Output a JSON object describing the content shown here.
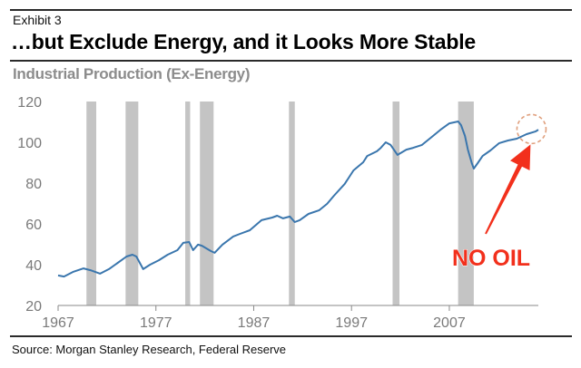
{
  "header": {
    "exhibit_label": "Exhibit 3",
    "title": "…but Exclude Energy, and it Looks More Stable",
    "chart_subtitle": "Industrial Production (Ex-Energy)"
  },
  "footer": {
    "source": "Source: Morgan Stanley Research, Federal Reserve"
  },
  "colors": {
    "line": "#3a76ad",
    "recession": "#c4c4c4",
    "annotation": "#f2301c",
    "circle": "#e0a07e",
    "axis": "#8a8a8a"
  },
  "chart_data": {
    "type": "line",
    "title": "Industrial Production (Ex-Energy)",
    "xlabel": "",
    "ylabel": "",
    "xlim": [
      1967,
      2016.1
    ],
    "ylim": [
      20,
      120
    ],
    "grid": false,
    "x_ticks": [
      1967,
      1977,
      1987,
      1997,
      2007
    ],
    "x_tick_labels": [
      "1967",
      "1977",
      "1987",
      "1997",
      "2007"
    ],
    "y_ticks": [
      20,
      40,
      60,
      80,
      100,
      120
    ],
    "y_tick_labels": [
      "20",
      "40",
      "60",
      "80",
      "100",
      "120"
    ],
    "recessions": [
      [
        1969.9,
        1970.9
      ],
      [
        1973.9,
        1975.2
      ],
      [
        1980.0,
        1980.5
      ],
      [
        1981.5,
        1982.9
      ],
      [
        1990.6,
        1991.2
      ],
      [
        2001.2,
        2001.9
      ],
      [
        2007.9,
        2009.5
      ]
    ],
    "series": [
      {
        "name": "Industrial Production (Ex-Energy)",
        "x": [
          1967.0,
          1967.6,
          1968.5,
          1969.6,
          1970.3,
          1971.3,
          1972.2,
          1973.1,
          1974.0,
          1974.6,
          1975.0,
          1975.7,
          1976.4,
          1977.3,
          1978.2,
          1979.2,
          1979.8,
          1980.4,
          1980.8,
          1981.3,
          1981.7,
          1982.6,
          1983.0,
          1983.8,
          1984.9,
          1985.6,
          1986.6,
          1987.8,
          1988.9,
          1989.4,
          1990.0,
          1990.7,
          1991.2,
          1991.7,
          1992.6,
          1993.7,
          1994.5,
          1995.2,
          1996.3,
          1997.2,
          1998.2,
          1998.6,
          1999.6,
          2000.0,
          2000.5,
          2001.0,
          2001.7,
          2002.6,
          2003.3,
          2004.2,
          2005.1,
          2006.1,
          2007.0,
          2007.9,
          2008.2,
          2008.6,
          2008.9,
          2009.3,
          2009.5,
          2009.9,
          2010.4,
          2011.2,
          2012.1,
          2013.0,
          2013.9,
          2014.9,
          2015.8,
          2016.1
        ],
        "values": [
          34.7,
          34.2,
          36.4,
          38.2,
          37.3,
          35.6,
          37.8,
          40.9,
          44.0,
          44.9,
          44.0,
          37.8,
          40.0,
          42.2,
          44.9,
          47.1,
          50.7,
          51.1,
          47.1,
          49.8,
          49.3,
          46.7,
          45.8,
          49.8,
          53.8,
          55.1,
          56.9,
          61.8,
          63.1,
          64.0,
          62.7,
          63.6,
          60.9,
          61.8,
          64.9,
          66.7,
          69.8,
          73.8,
          79.6,
          86.2,
          90.2,
          93.3,
          95.6,
          97.3,
          100.0,
          98.7,
          93.8,
          96.4,
          97.3,
          98.7,
          102.2,
          106.2,
          109.3,
          110.2,
          108.4,
          103.1,
          96.4,
          89.8,
          87.1,
          89.8,
          93.3,
          96.0,
          99.6,
          100.9,
          101.8,
          104.0,
          105.3,
          106.2
        ]
      }
    ],
    "annotations": [
      {
        "text": "NO OIL",
        "type": "arrow-label",
        "points_to": [
          2015.3,
          102.5
        ]
      },
      {
        "type": "dashed-circle",
        "center": [
          2015.4,
          106.5
        ]
      }
    ]
  }
}
